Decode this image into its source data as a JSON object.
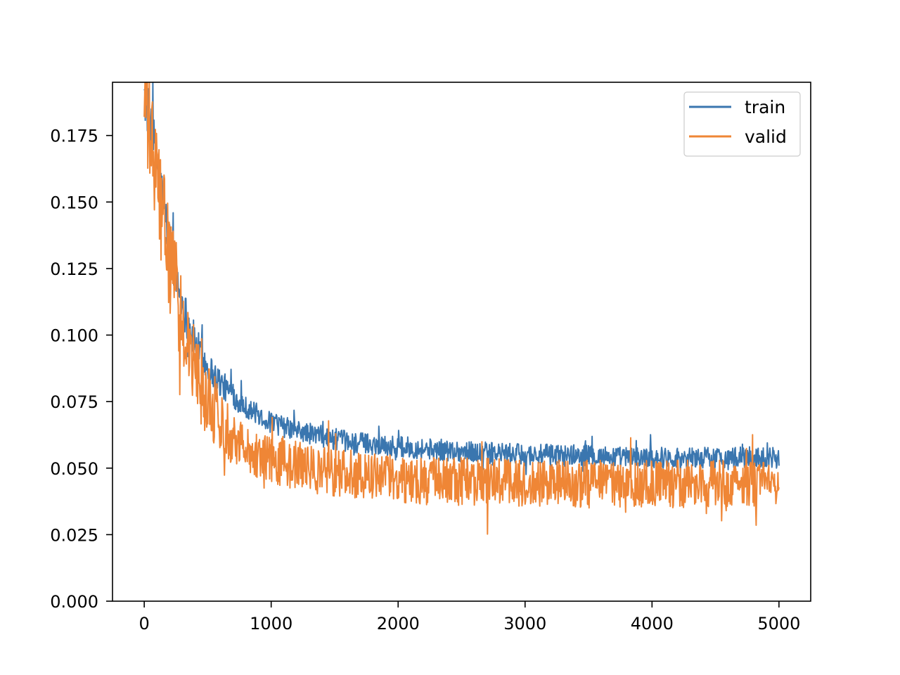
{
  "chart_data": {
    "type": "line",
    "title": "",
    "xlabel": "",
    "ylabel": "",
    "xlim": [
      -250,
      5250
    ],
    "ylim": [
      0.0,
      0.195
    ],
    "xticks": [
      0,
      1000,
      2000,
      3000,
      4000,
      5000
    ],
    "xtick_labels": [
      "0",
      "1000",
      "2000",
      "3000",
      "4000",
      "5000"
    ],
    "yticks": [
      0.0,
      0.025,
      0.05,
      0.075,
      0.1,
      0.125,
      0.15,
      0.175
    ],
    "ytick_labels": [
      "0.000",
      "0.025",
      "0.050",
      "0.075",
      "0.100",
      "0.125",
      "0.150",
      "0.175"
    ],
    "grid": false,
    "legend": {
      "position": "top-right",
      "entries": [
        "train",
        "valid"
      ]
    },
    "colors": {
      "train": "#3a76af",
      "valid": "#ef8636"
    },
    "series": [
      {
        "name": "train",
        "color": "#3a76af",
        "x": [
          0,
          50,
          100,
          150,
          200,
          250,
          300,
          350,
          400,
          450,
          500,
          600,
          700,
          800,
          900,
          1000,
          1200,
          1400,
          1600,
          1800,
          2000,
          2300,
          2600,
          3000,
          3400,
          3800,
          4200,
          4600,
          5000
        ],
        "y": [
          0.19,
          0.18,
          0.165,
          0.15,
          0.135,
          0.122,
          0.112,
          0.104,
          0.097,
          0.092,
          0.088,
          0.082,
          0.077,
          0.073,
          0.07,
          0.067,
          0.064,
          0.062,
          0.06,
          0.059,
          0.058,
          0.057,
          0.056,
          0.055,
          0.055,
          0.054,
          0.054,
          0.054,
          0.054
        ],
        "noise": 0.004
      },
      {
        "name": "valid",
        "color": "#ef8636",
        "x": [
          0,
          50,
          100,
          150,
          200,
          250,
          300,
          350,
          400,
          450,
          500,
          600,
          700,
          800,
          900,
          1000,
          1200,
          1400,
          1600,
          1800,
          2000,
          2300,
          2600,
          3000,
          3400,
          3800,
          4200,
          4600,
          5000
        ],
        "y": [
          0.19,
          0.172,
          0.158,
          0.143,
          0.128,
          0.115,
          0.104,
          0.095,
          0.088,
          0.081,
          0.076,
          0.068,
          0.062,
          0.058,
          0.055,
          0.053,
          0.051,
          0.049,
          0.048,
          0.047,
          0.046,
          0.045,
          0.045,
          0.044,
          0.044,
          0.044,
          0.044,
          0.044,
          0.044
        ],
        "noise": 0.009
      }
    ]
  }
}
